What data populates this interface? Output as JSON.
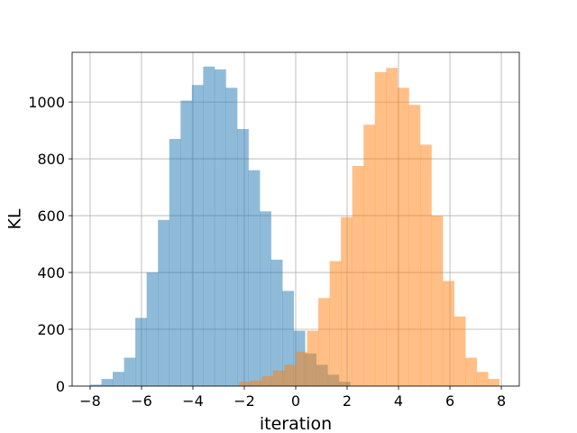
{
  "chart_data": {
    "type": "histogram",
    "title": "",
    "xlabel": "iteration",
    "ylabel": "KL",
    "xlim": [
      -8.7,
      8.7
    ],
    "ylim": [
      0,
      1175
    ],
    "xticks": [
      -8,
      -6,
      -4,
      -2,
      0,
      2,
      4,
      6,
      8
    ],
    "xtick_labels": [
      "−8",
      "−6",
      "−4",
      "−2",
      "0",
      "2",
      "4",
      "6",
      "8"
    ],
    "yticks": [
      0,
      200,
      400,
      600,
      800,
      1000
    ],
    "ytick_labels": [
      "0",
      "200",
      "400",
      "600",
      "800",
      "1000"
    ],
    "grid": true,
    "legend": "none",
    "series": [
      {
        "color": "#1f77b4",
        "opacity": 0.5,
        "bin_edges": [
          -8.0,
          -7.56,
          -7.12,
          -6.68,
          -6.24,
          -5.8,
          -5.36,
          -4.92,
          -4.48,
          -4.04,
          -3.6,
          -3.16,
          -2.72,
          -2.28,
          -1.84,
          -1.4,
          -0.96,
          -0.52,
          -0.08,
          0.36,
          0.8,
          1.24,
          1.68,
          2.12
        ],
        "counts": [
          5,
          25,
          50,
          100,
          240,
          400,
          585,
          870,
          1005,
          1060,
          1125,
          1115,
          1050,
          905,
          760,
          615,
          445,
          335,
          195,
          115,
          75,
          40,
          15
        ]
      },
      {
        "color": "#ff7f0e",
        "opacity": 0.5,
        "bin_edges": [
          -2.2,
          -1.76,
          -1.32,
          -0.88,
          -0.44,
          0.0,
          0.44,
          0.88,
          1.32,
          1.76,
          2.2,
          2.64,
          3.08,
          3.52,
          3.96,
          4.4,
          4.84,
          5.28,
          5.72,
          6.16,
          6.6,
          7.04,
          7.48,
          7.92
        ],
        "counts": [
          15,
          20,
          35,
          55,
          75,
          120,
          195,
          310,
          440,
          595,
          775,
          920,
          1105,
          1120,
          1050,
          990,
          850,
          600,
          370,
          245,
          100,
          50,
          25
        ]
      }
    ]
  }
}
